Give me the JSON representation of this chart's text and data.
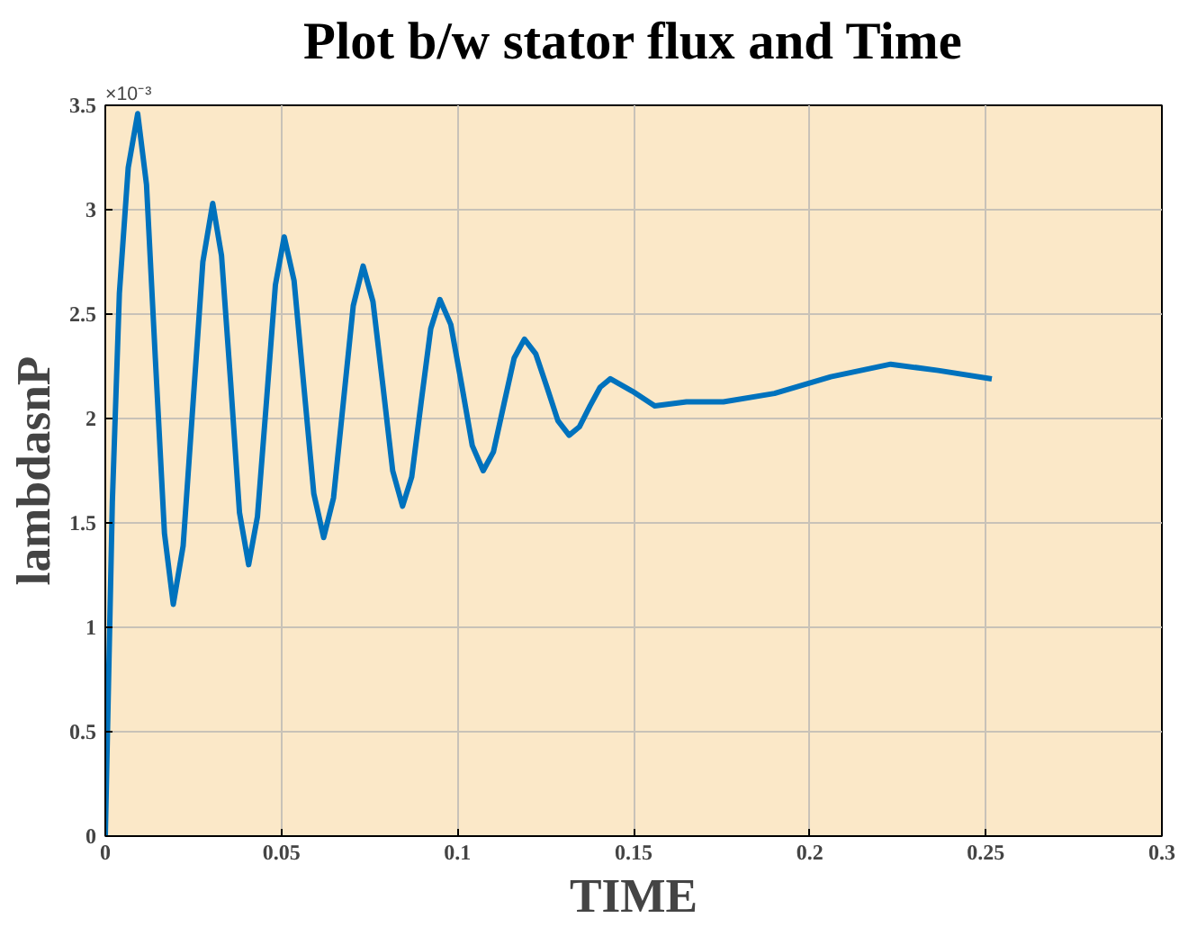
{
  "chart_data": {
    "type": "line",
    "title": "Plot b/w stator flux and Time",
    "xlabel": "TIME",
    "ylabel": "lambdasnP",
    "annotations": [
      "×10⁻³"
    ],
    "x": [
      0,
      0.002,
      0.004,
      0.0065,
      0.0092,
      0.0117,
      0.0142,
      0.0168,
      0.0193,
      0.0221,
      0.0249,
      0.0277,
      0.0305,
      0.033,
      0.0356,
      0.0381,
      0.0407,
      0.0432,
      0.0458,
      0.0483,
      0.0508,
      0.0536,
      0.0564,
      0.0592,
      0.062,
      0.0648,
      0.0676,
      0.0704,
      0.0732,
      0.076,
      0.0788,
      0.0816,
      0.0844,
      0.087,
      0.0897,
      0.0924,
      0.095,
      0.0981,
      0.1012,
      0.1042,
      0.1073,
      0.1102,
      0.1132,
      0.1161,
      0.119,
      0.1222,
      0.1254,
      0.1285,
      0.1317,
      0.1346,
      0.1376,
      0.1405,
      0.1434,
      0.1497,
      0.156,
      0.165,
      0.1755,
      0.19,
      0.206,
      0.223,
      0.2365,
      0.2517
    ],
    "series": [
      {
        "color": "#0072bd",
        "values": [
          0,
          1.6,
          2.6,
          3.2,
          3.46,
          3.12,
          2.29,
          1.45,
          1.11,
          1.39,
          2.07,
          2.75,
          3.03,
          2.78,
          2.17,
          1.55,
          1.3,
          1.53,
          2.09,
          2.64,
          2.87,
          2.66,
          2.15,
          1.64,
          1.43,
          1.62,
          2.08,
          2.54,
          2.73,
          2.56,
          2.16,
          1.75,
          1.58,
          1.72,
          2.08,
          2.43,
          2.57,
          2.45,
          2.16,
          1.87,
          1.75,
          1.84,
          2.07,
          2.29,
          2.38,
          2.31,
          2.15,
          1.99,
          1.92,
          1.96,
          2.06,
          2.15,
          2.19,
          2.13,
          2.06,
          2.08,
          2.08,
          2.12,
          2.2,
          2.26,
          2.23,
          2.19
        ]
      }
    ],
    "xlim": [
      0,
      0.3
    ],
    "xticks": [
      0,
      0.05,
      0.1,
      0.15,
      0.2,
      0.25,
      0.3
    ],
    "ylim": [
      0,
      3.5
    ],
    "yticks": [
      0,
      0.5,
      1,
      1.5,
      2,
      2.5,
      3,
      3.5
    ],
    "grid": true,
    "marker": "none",
    "line_style": "solid"
  }
}
